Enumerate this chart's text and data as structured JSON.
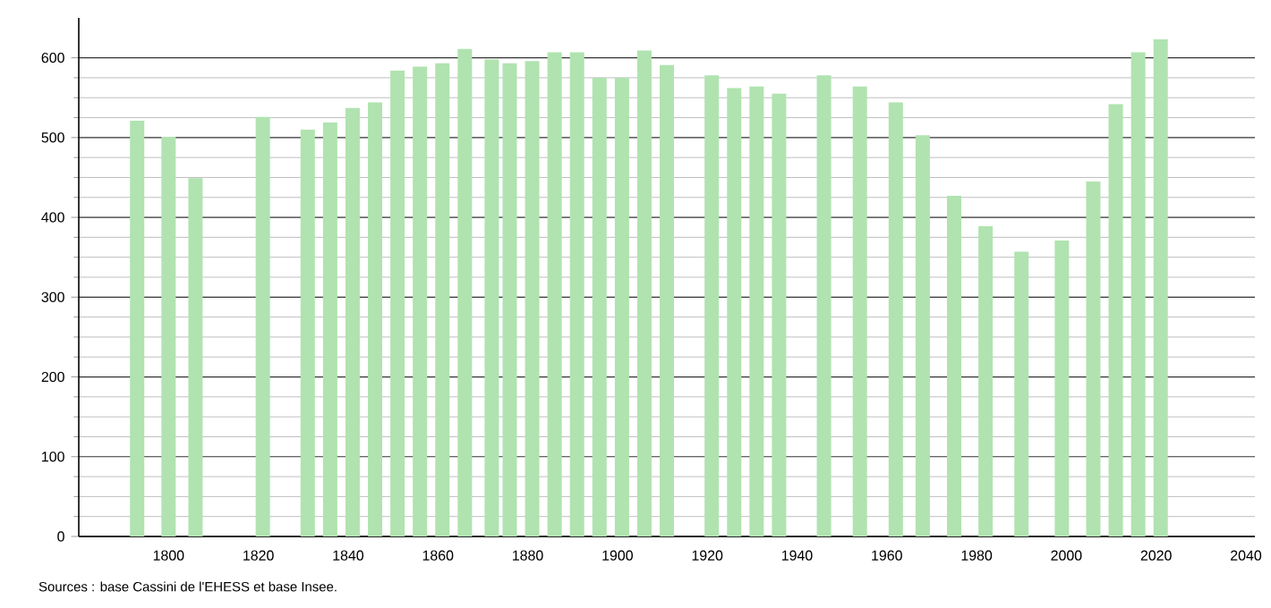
{
  "chart_data": {
    "type": "bar",
    "x": [
      1793,
      1800,
      1806,
      1821,
      1831,
      1836,
      1841,
      1846,
      1851,
      1856,
      1861,
      1866,
      1872,
      1876,
      1881,
      1886,
      1891,
      1896,
      1901,
      1906,
      1911,
      1921,
      1926,
      1931,
      1936,
      1946,
      1954,
      1962,
      1968,
      1975,
      1982,
      1990,
      1999,
      2006,
      2011,
      2016,
      2021
    ],
    "values": [
      521,
      501,
      449,
      526,
      510,
      519,
      537,
      544,
      584,
      589,
      593,
      611,
      598,
      593,
      596,
      607,
      607,
      575,
      575,
      609,
      591,
      578,
      562,
      564,
      555,
      578,
      564,
      544,
      503,
      427,
      389,
      357,
      371,
      445,
      542,
      607,
      623
    ],
    "color": "#b0e3b0",
    "xlim": [
      1780,
      2042
    ],
    "xticks": [
      1800,
      1820,
      1840,
      1860,
      1880,
      1900,
      1920,
      1940,
      1960,
      1980,
      2000,
      2020,
      2040
    ],
    "ylim": [
      0,
      650
    ],
    "yticks": [
      0,
      100,
      200,
      300,
      400,
      500,
      600
    ],
    "grid": "y",
    "annotations": [
      "Sources : base Cassini de l'EHESS et base Insee."
    ]
  }
}
